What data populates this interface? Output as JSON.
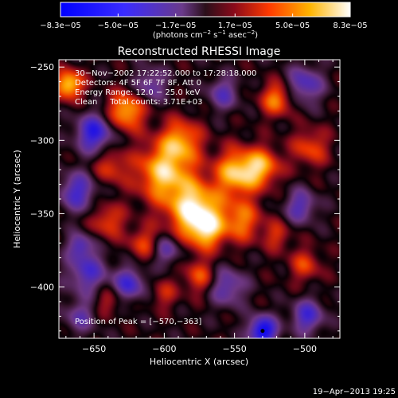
{
  "chart_data": {
    "type": "heatmap",
    "title": "Reconstructed RHESSI Image",
    "xlabel": "Heliocentric X (arcsec)",
    "ylabel": "Heliocentric Y (arcsec)",
    "xlim": [
      -675,
      -475
    ],
    "ylim": [
      -435,
      -245
    ],
    "x_ticks": [
      -650,
      -600,
      -550,
      -500
    ],
    "x_tick_labels": [
      "−650",
      "−600",
      "−550",
      "−500"
    ],
    "y_ticks": [
      -400,
      -350,
      -300,
      -250
    ],
    "y_tick_labels": [
      "−400",
      "−350",
      "−300",
      "−250"
    ],
    "colorbar": {
      "min": -8.3e-05,
      "max": 8.3e-05,
      "ticks": [
        -8.3e-05,
        -5e-05,
        -1.7e-05,
        1.7e-05,
        5e-05,
        8.3e-05
      ],
      "tick_labels": [
        "−8.3e−05",
        "−5.0e−05",
        "−1.7e−05",
        "1.7e−05",
        "5.0e−05",
        "8.3e−05"
      ],
      "label_main": "(photons cm",
      "label_exp1": "−2",
      "label_mid1": " s",
      "label_exp2": "−1",
      "label_mid2": " asec",
      "label_exp3": "−2",
      "label_end": ")"
    },
    "annotations": [
      "30−Nov−2002 17:22:52.000 to 17:28:18.000",
      "Detectors: 4F 5F 6F 7F 8F, Att 0",
      "Energy Range: 12.0 − 25.0 keV",
      "Clean     Total counts: 3.71E+03"
    ],
    "peak_label": "Position of Peak = [−570,−363]",
    "peak": [
      -570,
      -363
    ],
    "dark_spot": [
      -530,
      -430
    ],
    "timestamp": "19−Apr−2013 19:25",
    "blobs": [
      {
        "x": -578,
        "y": -348,
        "amp": 0.95,
        "s": 13
      },
      {
        "x": -570,
        "y": -362,
        "amp": 0.55,
        "s": 9
      },
      {
        "x": -600,
        "y": -322,
        "amp": 0.8,
        "s": 14
      },
      {
        "x": -588,
        "y": -300,
        "amp": 0.6,
        "s": 10
      },
      {
        "x": -548,
        "y": -322,
        "amp": 0.8,
        "s": 11
      },
      {
        "x": -530,
        "y": -318,
        "amp": 0.6,
        "s": 9
      },
      {
        "x": -545,
        "y": -355,
        "amp": 0.55,
        "s": 10
      },
      {
        "x": -627,
        "y": -280,
        "amp": 0.75,
        "s": 9
      },
      {
        "x": -638,
        "y": -318,
        "amp": 0.4,
        "s": 8
      },
      {
        "x": -640,
        "y": -355,
        "amp": 0.45,
        "s": 8
      },
      {
        "x": -615,
        "y": -370,
        "amp": 0.4,
        "s": 8
      },
      {
        "x": -668,
        "y": -262,
        "amp": 0.85,
        "s": 7
      },
      {
        "x": -520,
        "y": -272,
        "amp": 0.6,
        "s": 8
      },
      {
        "x": -496,
        "y": -305,
        "amp": 0.45,
        "s": 9
      },
      {
        "x": -575,
        "y": -393,
        "amp": 0.45,
        "s": 8
      },
      {
        "x": -640,
        "y": -410,
        "amp": 0.3,
        "s": 7
      },
      {
        "x": -600,
        "y": -405,
        "amp": 0.3,
        "s": 7
      },
      {
        "x": -500,
        "y": -385,
        "amp": 0.4,
        "s": 8
      },
      {
        "x": -520,
        "y": -365,
        "amp": 0.35,
        "s": 7
      },
      {
        "x": -650,
        "y": -295,
        "amp": -0.75,
        "s": 9
      },
      {
        "x": -662,
        "y": -335,
        "amp": -0.6,
        "s": 9
      },
      {
        "x": -655,
        "y": -390,
        "amp": -0.55,
        "s": 10
      },
      {
        "x": -660,
        "y": -420,
        "amp": -0.4,
        "s": 8
      },
      {
        "x": -625,
        "y": -398,
        "amp": -0.6,
        "s": 8
      },
      {
        "x": -530,
        "y": -430,
        "amp": -0.95,
        "s": 7
      },
      {
        "x": -555,
        "y": -400,
        "amp": -0.5,
        "s": 9
      },
      {
        "x": -498,
        "y": -420,
        "amp": -0.6,
        "s": 8
      },
      {
        "x": -500,
        "y": -262,
        "amp": -0.55,
        "s": 9
      },
      {
        "x": -503,
        "y": -345,
        "amp": -0.5,
        "s": 8
      },
      {
        "x": -558,
        "y": -268,
        "amp": -0.45,
        "s": 8
      },
      {
        "x": -610,
        "y": -262,
        "amp": -0.45,
        "s": 8
      },
      {
        "x": -598,
        "y": -375,
        "amp": -0.45,
        "s": 7
      },
      {
        "x": -660,
        "y": -372,
        "amp": -0.5,
        "s": 6
      }
    ]
  }
}
